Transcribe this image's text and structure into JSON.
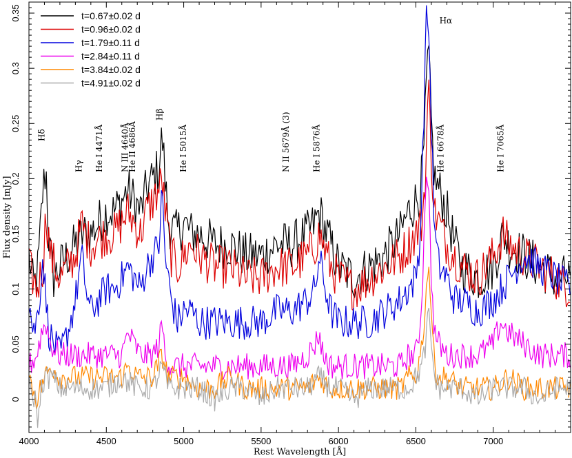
{
  "chart_data": {
    "type": "line",
    "xlabel": "Rest Wavelength [Å]",
    "ylabel": "Flux density [mJy]",
    "xlim": [
      4000,
      7500
    ],
    "ylim": [
      -0.03,
      0.36
    ],
    "x_ticks": [
      4000,
      4500,
      5000,
      5500,
      6000,
      6500,
      7000
    ],
    "y_ticks": [
      0,
      0.05,
      0.1,
      0.15,
      0.2,
      0.25,
      0.3,
      0.35
    ],
    "y_tick_labels": [
      "0",
      "0.05",
      "0.1",
      "0.15",
      "0.2",
      "0.25",
      "0.3",
      "0.35"
    ],
    "legend_position": "top-left",
    "series": [
      {
        "name": "t=0.67±0.02 d",
        "color": "#000000",
        "x": [
          4000,
          4030,
          4060,
          4090,
          4110,
          4130,
          4160,
          4200,
          4250,
          4300,
          4350,
          4400,
          4450,
          4500,
          4550,
          4600,
          4640,
          4680,
          4720,
          4760,
          4800,
          4840,
          4861,
          4880,
          4900,
          4950,
          5000,
          5050,
          5100,
          5200,
          5300,
          5400,
          5500,
          5600,
          5700,
          5800,
          5850,
          5876,
          5900,
          5950,
          6000,
          6100,
          6200,
          6300,
          6400,
          6450,
          6500,
          6530,
          6550,
          6565,
          6580,
          6600,
          6620,
          6650,
          6700,
          6750,
          6800,
          6900,
          7000,
          7065,
          7100,
          7200,
          7300,
          7400,
          7500
        ],
        "y": [
          0.13,
          0.1,
          0.12,
          0.19,
          0.21,
          0.14,
          0.11,
          0.12,
          0.13,
          0.14,
          0.15,
          0.15,
          0.16,
          0.17,
          0.17,
          0.18,
          0.19,
          0.18,
          0.17,
          0.19,
          0.2,
          0.21,
          0.24,
          0.2,
          0.16,
          0.15,
          0.16,
          0.15,
          0.15,
          0.14,
          0.14,
          0.13,
          0.13,
          0.14,
          0.14,
          0.15,
          0.16,
          0.17,
          0.16,
          0.14,
          0.12,
          0.11,
          0.12,
          0.13,
          0.15,
          0.17,
          0.18,
          0.19,
          0.22,
          0.27,
          0.32,
          0.25,
          0.2,
          0.19,
          0.17,
          0.14,
          0.12,
          0.11,
          0.12,
          0.15,
          0.14,
          0.13,
          0.12,
          0.11,
          0.11
        ]
      },
      {
        "name": "t=0.96±0.02 d",
        "color": "#dd0000",
        "x": [
          4000,
          4050,
          4090,
          4110,
          4140,
          4200,
          4250,
          4300,
          4340,
          4360,
          4400,
          4500,
          4550,
          4600,
          4640,
          4680,
          4720,
          4760,
          4800,
          4840,
          4861,
          4880,
          4920,
          4960,
          5000,
          5050,
          5100,
          5200,
          5300,
          5400,
          5500,
          5600,
          5700,
          5800,
          5850,
          5876,
          5900,
          5950,
          6000,
          6100,
          6200,
          6300,
          6400,
          6450,
          6500,
          6540,
          6565,
          6580,
          6600,
          6620,
          6650,
          6700,
          6800,
          6900,
          7000,
          7065,
          7100,
          7200,
          7300,
          7400,
          7500
        ],
        "y": [
          0.12,
          0.1,
          0.12,
          0.17,
          0.13,
          0.11,
          0.12,
          0.13,
          0.16,
          0.15,
          0.14,
          0.15,
          0.15,
          0.16,
          0.17,
          0.16,
          0.15,
          0.17,
          0.18,
          0.19,
          0.2,
          0.17,
          0.13,
          0.12,
          0.13,
          0.14,
          0.13,
          0.12,
          0.12,
          0.11,
          0.11,
          0.12,
          0.12,
          0.13,
          0.14,
          0.15,
          0.14,
          0.12,
          0.11,
          0.1,
          0.11,
          0.12,
          0.13,
          0.14,
          0.15,
          0.16,
          0.21,
          0.29,
          0.22,
          0.17,
          0.16,
          0.14,
          0.12,
          0.11,
          0.13,
          0.15,
          0.14,
          0.13,
          0.12,
          0.11,
          0.1
        ]
      },
      {
        "name": "t=1.79±0.11 d",
        "color": "#0000dd",
        "x": [
          4000,
          4030,
          4060,
          4090,
          4110,
          4130,
          4160,
          4200,
          4250,
          4300,
          4340,
          4380,
          4400,
          4450,
          4500,
          4550,
          4600,
          4640,
          4680,
          4720,
          4760,
          4800,
          4840,
          4861,
          4880,
          4920,
          4960,
          5000,
          5050,
          5100,
          5200,
          5300,
          5400,
          5500,
          5600,
          5700,
          5800,
          5850,
          5876,
          5900,
          5950,
          6000,
          6100,
          6200,
          6300,
          6400,
          6450,
          6500,
          6530,
          6550,
          6565,
          6580,
          6600,
          6620,
          6650,
          6700,
          6750,
          6800,
          6900,
          7000,
          7100,
          7200,
          7300,
          7400,
          7500
        ],
        "y": [
          0.09,
          0.06,
          0.08,
          0.13,
          0.09,
          0.06,
          0.05,
          0.04,
          0.06,
          0.09,
          0.13,
          0.09,
          0.08,
          0.09,
          0.1,
          0.1,
          0.11,
          0.12,
          0.11,
          0.1,
          0.12,
          0.13,
          0.14,
          0.19,
          0.13,
          0.09,
          0.07,
          0.08,
          0.08,
          0.07,
          0.07,
          0.07,
          0.07,
          0.07,
          0.08,
          0.08,
          0.09,
          0.1,
          0.13,
          0.11,
          0.08,
          0.07,
          0.07,
          0.07,
          0.08,
          0.09,
          0.1,
          0.11,
          0.15,
          0.25,
          0.34,
          0.35,
          0.25,
          0.15,
          0.12,
          0.11,
          0.09,
          0.09,
          0.08,
          0.09,
          0.11,
          0.13,
          0.12,
          0.11,
          0.1
        ]
      },
      {
        "name": "t=2.84±0.11 d",
        "color": "#ee00ee",
        "x": [
          4000,
          4050,
          4080,
          4110,
          4140,
          4200,
          4250,
          4300,
          4350,
          4400,
          4500,
          4550,
          4600,
          4640,
          4680,
          4720,
          4760,
          4800,
          4840,
          4861,
          4880,
          4920,
          5000,
          5100,
          5200,
          5300,
          5400,
          5500,
          5600,
          5700,
          5800,
          5850,
          5876,
          5900,
          5950,
          6000,
          6100,
          6200,
          6300,
          6400,
          6450,
          6500,
          6530,
          6550,
          6565,
          6580,
          6600,
          6620,
          6650,
          6700,
          6800,
          6900,
          7000,
          7050,
          7100,
          7200,
          7300,
          7400,
          7500
        ],
        "y": [
          0.03,
          0.04,
          0.06,
          0.07,
          0.05,
          0.04,
          0.04,
          0.04,
          0.04,
          0.04,
          0.04,
          0.04,
          0.04,
          0.06,
          0.05,
          0.04,
          0.04,
          0.04,
          0.05,
          0.07,
          0.04,
          0.03,
          0.03,
          0.03,
          0.03,
          0.03,
          0.03,
          0.03,
          0.03,
          0.03,
          0.04,
          0.05,
          0.06,
          0.04,
          0.03,
          0.03,
          0.03,
          0.03,
          0.03,
          0.03,
          0.04,
          0.04,
          0.07,
          0.13,
          0.21,
          0.2,
          0.11,
          0.06,
          0.05,
          0.04,
          0.04,
          0.04,
          0.05,
          0.07,
          0.06,
          0.05,
          0.04,
          0.04,
          0.04
        ]
      },
      {
        "name": "t=3.84±0.02 d",
        "color": "#ff8800",
        "x": [
          4000,
          4050,
          4100,
          4150,
          4200,
          4300,
          4400,
          4500,
          4600,
          4640,
          4700,
          4800,
          4861,
          4900,
          5000,
          5100,
          5200,
          5300,
          5400,
          5500,
          5600,
          5700,
          5800,
          5876,
          5950,
          6000,
          6100,
          6200,
          6300,
          6400,
          6450,
          6500,
          6540,
          6565,
          6580,
          6600,
          6620,
          6650,
          6700,
          6800,
          6900,
          7000,
          7100,
          7200,
          7300,
          7400,
          7500
        ],
        "y": [
          0.02,
          0.0,
          0.02,
          0.03,
          0.02,
          0.02,
          0.02,
          0.02,
          0.02,
          0.03,
          0.02,
          0.02,
          0.04,
          0.02,
          0.02,
          0.01,
          0.01,
          0.02,
          0.01,
          0.01,
          0.01,
          0.01,
          0.01,
          0.02,
          0.01,
          0.01,
          0.01,
          0.01,
          0.01,
          0.01,
          0.02,
          0.02,
          0.05,
          0.09,
          0.13,
          0.08,
          0.03,
          0.02,
          0.02,
          0.01,
          0.01,
          0.01,
          0.02,
          0.01,
          0.01,
          0.01,
          0.01
        ]
      },
      {
        "name": "t=4.91±0.02 d",
        "color": "#aaaaaa",
        "x": [
          4000,
          4040,
          4060,
          4080,
          4100,
          4150,
          4200,
          4300,
          4400,
          4500,
          4600,
          4700,
          4800,
          4861,
          4900,
          5000,
          5100,
          5200,
          5300,
          5400,
          5500,
          5600,
          5700,
          5800,
          5876,
          5950,
          6000,
          6100,
          6200,
          6300,
          6400,
          6450,
          6500,
          6540,
          6565,
          6580,
          6600,
          6620,
          6650,
          6700,
          6800,
          6900,
          7000,
          7100,
          7200,
          7300,
          7400,
          7500
        ],
        "y": [
          0.01,
          0.0,
          -0.02,
          0.01,
          0.02,
          0.02,
          0.01,
          0.01,
          0.01,
          0.01,
          0.02,
          0.01,
          0.01,
          0.03,
          0.01,
          0.01,
          0.01,
          0.0,
          0.01,
          0.01,
          0.0,
          0.01,
          0.01,
          0.01,
          0.02,
          0.01,
          0.01,
          0.0,
          0.01,
          0.01,
          0.01,
          0.01,
          0.02,
          0.03,
          0.05,
          0.08,
          0.05,
          0.02,
          0.01,
          0.01,
          0.01,
          0.0,
          0.01,
          0.01,
          0.01,
          0.0,
          0.01,
          0.01
        ]
      }
    ],
    "annotations": [
      {
        "text": "Hδ",
        "x": 4101,
        "rotated": true
      },
      {
        "text": "Hγ",
        "x": 4340,
        "rotated": true
      },
      {
        "text": "He I 4471Å",
        "x": 4471,
        "rotated": true
      },
      {
        "text": "N III 4640Å",
        "x": 4640,
        "rotated": true
      },
      {
        "text": "He II 4686Å",
        "x": 4686,
        "rotated": true
      },
      {
        "text": "Hβ",
        "x": 4861,
        "rotated": true
      },
      {
        "text": "He I 5015Å",
        "x": 5015,
        "rotated": true
      },
      {
        "text": "N II 5679Å (3)",
        "x": 5679,
        "rotated": true
      },
      {
        "text": "He I 5876Å",
        "x": 5876,
        "rotated": true
      },
      {
        "text": "Hα",
        "x": 6563,
        "rotated": false
      },
      {
        "text": "He I 6678Å",
        "x": 6678,
        "rotated": true
      },
      {
        "text": "He I 7065Å",
        "x": 7065,
        "rotated": true
      }
    ]
  }
}
